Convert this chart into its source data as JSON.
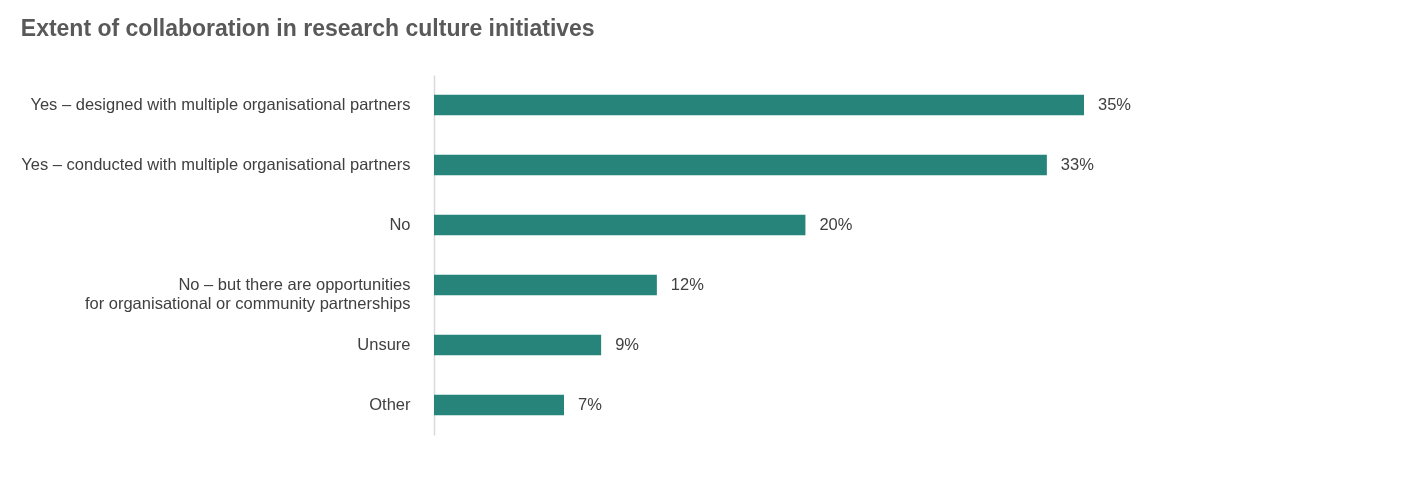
{
  "chart_data": {
    "type": "bar",
    "orientation": "horizontal",
    "title": "Extent of collaboration in research culture initiatives",
    "categories": [
      "Yes – designed with multiple organisational partners",
      "Yes – conducted with multiple organisational partners",
      "No",
      "No – but there are opportunities\nfor organisational or community partnerships",
      "Unsure",
      "Other"
    ],
    "values": [
      35,
      33,
      20,
      12,
      9,
      7
    ],
    "value_labels": [
      "35%",
      "33%",
      "20%",
      "12%",
      "9%",
      "7%"
    ],
    "color": "#26847a",
    "grid": false
  }
}
